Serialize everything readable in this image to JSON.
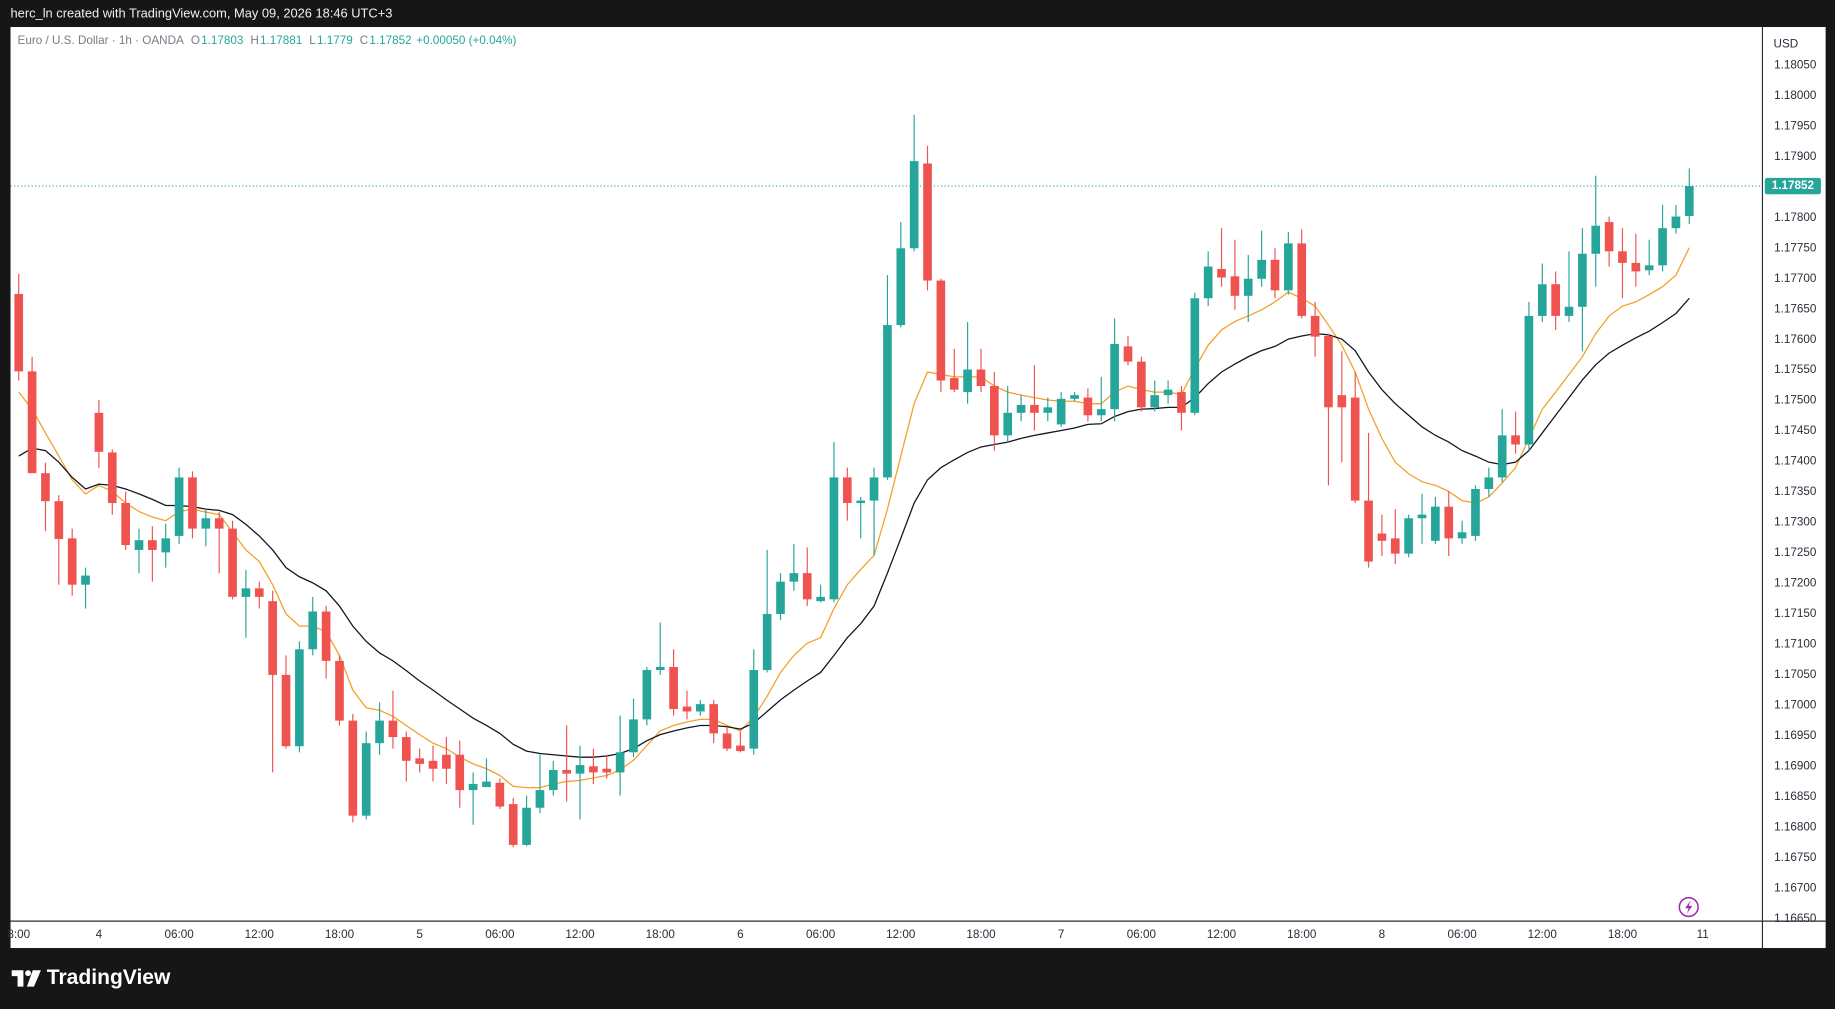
{
  "header": {
    "text": "herc_ln created with TradingView.com, May 09, 2026 18:46 UTC+3"
  },
  "footer": {
    "brand": "TradingView"
  },
  "chart_data": {
    "type": "candlestick",
    "legend": {
      "title": "Euro / U.S. Dollar · 1h · OANDA",
      "keys": [
        "O",
        "H",
        "L",
        "C"
      ],
      "change": "+0.00050 (+0.04%)"
    },
    "currency": "USD",
    "up_color": "#26a69a",
    "down_color": "#ef5350",
    "grid": false,
    "categories": [
      "8:00",
      null,
      null,
      null,
      null,
      null,
      "4",
      null,
      null,
      null,
      null,
      null,
      "06:00",
      null,
      null,
      null,
      null,
      null,
      "12:00",
      null,
      null,
      null,
      null,
      null,
      "18:00",
      null,
      null,
      null,
      null,
      null,
      "5",
      null,
      null,
      null,
      null,
      null,
      "06:00",
      null,
      null,
      null,
      null,
      null,
      "12:00",
      null,
      null,
      null,
      null,
      null,
      "18:00",
      null,
      null,
      null,
      null,
      null,
      "6",
      null,
      null,
      null,
      null,
      null,
      "06:00",
      null,
      null,
      null,
      null,
      null,
      "12:00",
      null,
      null,
      null,
      null,
      null,
      "18:00",
      null,
      null,
      null,
      null,
      null,
      "7",
      null,
      null,
      null,
      null,
      null,
      "06:00",
      null,
      null,
      null,
      null,
      null,
      "12:00",
      null,
      null,
      null,
      null,
      null,
      "18:00",
      null,
      null,
      null,
      null,
      null,
      "8",
      null,
      null,
      null,
      null,
      null,
      "06:00",
      null,
      null,
      null,
      null,
      null,
      "12:00",
      null,
      null,
      null,
      null,
      null,
      "18:00",
      null,
      null,
      null,
      null,
      null,
      "11"
    ],
    "open": [
      1.17675,
      1.17548,
      1.17381,
      1.17335,
      1.17274,
      1.17198,
      1.1748,
      1.17415,
      1.17332,
      1.17255,
      1.17271,
      1.17251,
      1.17278,
      1.17374,
      1.1729,
      1.17307,
      1.1729,
      1.17178,
      1.17192,
      1.17171,
      1.1705,
      1.16933,
      1.17092,
      1.17154,
      1.17073,
      1.16975,
      1.16819,
      1.16938,
      1.16975,
      1.16948,
      1.16913,
      1.16909,
      1.16919,
      1.16919,
      1.16861,
      1.16866,
      1.16873,
      1.16838,
      1.16771,
      1.16832,
      1.16861,
      1.16894,
      1.16888,
      1.169,
      1.16896,
      1.1689,
      1.16923,
      1.16977,
      1.17058,
      1.17063,
      1.16998,
      1.1699,
      1.17002,
      1.16954,
      1.16934,
      1.16929,
      1.17058,
      1.1715,
      1.17203,
      1.17217,
      1.17171,
      1.17174,
      1.17374,
      1.17332,
      1.17336,
      1.17374,
      1.17624,
      1.1775,
      1.17889,
      1.17697,
      1.17537,
      1.17514,
      1.17551,
      1.17524,
      1.17443,
      1.1748,
      1.17493,
      1.1748,
      1.17461,
      1.17503,
      1.17505,
      1.17476,
      1.17486,
      1.17589,
      1.17564,
      1.17489,
      1.17509,
      1.17514,
      1.1748,
      1.17668,
      1.17716,
      1.17704,
      1.17672,
      1.177,
      1.17731,
      1.17681,
      1.17758,
      1.17639,
      1.17606,
      1.17509,
      1.17505,
      1.17336,
      1.17282,
      1.17274,
      1.17249,
      1.17307,
      1.1727,
      1.17326,
      1.17274,
      1.17278,
      1.17355,
      1.17374,
      1.17443,
      1.17428,
      1.17639,
      1.17691,
      1.17639,
      1.17654,
      1.17741,
      1.17793,
      1.17745,
      1.17726,
      1.17714,
      1.17722,
      1.17783,
      1.17803,
      null
    ],
    "high": [
      1.17708,
      1.17572,
      1.17398,
      1.17345,
      1.1729,
      1.17226,
      1.17501,
      1.1742,
      1.17351,
      1.1729,
      1.17294,
      1.17298,
      1.1739,
      1.17384,
      1.17322,
      1.17317,
      1.17303,
      1.17222,
      1.17203,
      1.17188,
      1.17082,
      1.17105,
      1.17178,
      1.17163,
      1.17082,
      1.16986,
      1.16957,
      1.17005,
      1.17024,
      1.16957,
      1.16929,
      1.16934,
      1.16948,
      1.16942,
      1.1689,
      1.16913,
      1.1688,
      1.16848,
      1.16852,
      1.16919,
      1.16909,
      1.16967,
      1.16934,
      1.16929,
      1.16919,
      1.16983,
      1.17011,
      1.17063,
      1.17136,
      1.17092,
      1.17024,
      1.17009,
      1.17009,
      1.16963,
      1.16957,
      1.17092,
      1.17255,
      1.17217,
      1.17265,
      1.17259,
      1.17198,
      1.17432,
      1.1739,
      1.17342,
      1.1739,
      1.17706,
      1.17793,
      1.17969,
      1.17918,
      1.177,
      1.17585,
      1.17629,
      1.17585,
      1.17547,
      1.17524,
      1.1751,
      1.17558,
      1.17505,
      1.17514,
      1.17514,
      1.1752,
      1.17539,
      1.17635,
      1.17606,
      1.17572,
      1.17533,
      1.17533,
      1.17524,
      1.17677,
      1.17745,
      1.17783,
      1.17764,
      1.17739,
      1.17779,
      1.1775,
      1.17777,
      1.17781,
      1.17662,
      1.1761,
      1.17581,
      1.17547,
      1.17447,
      1.17313,
      1.17322,
      1.17313,
      1.17347,
      1.17342,
      1.17351,
      1.17303,
      1.17361,
      1.1739,
      1.17486,
      1.17482,
      1.17662,
      1.17725,
      1.17712,
      1.17745,
      1.17783,
      1.17869,
      1.17802,
      1.17783,
      1.17774,
      1.17764,
      1.17821,
      1.17821,
      1.17881,
      null
    ],
    "low": [
      1.17533,
      1.17381,
      1.17286,
      1.17198,
      1.1718,
      1.17159,
      1.17389,
      1.17313,
      1.17255,
      1.17217,
      1.17203,
      1.17226,
      1.17265,
      1.17274,
      1.17261,
      1.17217,
      1.17174,
      1.17111,
      1.17159,
      1.1689,
      1.16929,
      1.16923,
      1.17082,
      1.17044,
      1.16967,
      1.16808,
      1.16813,
      1.16919,
      1.16929,
      1.16875,
      1.1689,
      1.16875,
      1.16871,
      1.16832,
      1.16804,
      1.16866,
      1.1683,
      1.16767,
      1.16769,
      1.16823,
      1.16852,
      1.16842,
      1.16813,
      1.16871,
      1.1688,
      1.16852,
      1.16915,
      1.16967,
      1.1705,
      1.16983,
      1.16977,
      1.16983,
      1.16938,
      1.16925,
      1.16923,
      1.16919,
      1.17054,
      1.1714,
      1.17188,
      1.17163,
      1.17169,
      1.17169,
      1.17303,
      1.17274,
      1.17246,
      1.1737,
      1.1762,
      1.17745,
      1.17681,
      1.17514,
      1.17514,
      1.17495,
      1.17514,
      1.17418,
      1.17432,
      1.17466,
      1.17451,
      1.17466,
      1.17457,
      1.17499,
      1.17466,
      1.17466,
      1.17466,
      1.17558,
      1.17482,
      1.17482,
      1.17495,
      1.17451,
      1.17476,
      1.17655,
      1.17687,
      1.17649,
      1.17629,
      1.17687,
      1.17668,
      1.17674,
      1.17635,
      1.17572,
      1.17361,
      1.17399,
      1.17332,
      1.17226,
      1.17245,
      1.17232,
      1.17243,
      1.17265,
      1.17265,
      1.17245,
      1.17265,
      1.1727,
      1.17342,
      1.17366,
      1.17413,
      1.17418,
      1.17629,
      1.17616,
      1.17629,
      1.17581,
      1.17687,
      1.1772,
      1.17668,
      1.17687,
      1.17706,
      1.17712,
      1.17774,
      1.1779,
      null
    ],
    "close": [
      1.17548,
      1.17381,
      1.17335,
      1.17273,
      1.17198,
      1.17213,
      1.17416,
      1.17332,
      1.17263,
      1.17271,
      1.17255,
      1.17274,
      1.17374,
      1.1729,
      1.17307,
      1.1729,
      1.17178,
      1.17192,
      1.17178,
      1.1705,
      1.16933,
      1.17092,
      1.17154,
      1.17073,
      1.16975,
      1.16819,
      1.16938,
      1.16975,
      1.16948,
      1.16909,
      1.16904,
      1.16896,
      1.16896,
      1.16861,
      1.16871,
      1.16875,
      1.16834,
      1.16771,
      1.16832,
      1.16861,
      1.16894,
      1.16888,
      1.16902,
      1.1689,
      1.1689,
      1.16923,
      1.16977,
      1.17058,
      1.17063,
      1.16994,
      1.1699,
      1.17002,
      1.16954,
      1.16929,
      1.16925,
      1.17058,
      1.1715,
      1.17203,
      1.17217,
      1.17174,
      1.17178,
      1.17374,
      1.17332,
      1.17336,
      1.17374,
      1.17624,
      1.1775,
      1.17893,
      1.17697,
      1.17533,
      1.17518,
      1.17551,
      1.17524,
      1.17443,
      1.1748,
      1.17493,
      1.1748,
      1.17489,
      1.17503,
      1.17509,
      1.17476,
      1.17486,
      1.17593,
      1.17564,
      1.17489,
      1.17509,
      1.17518,
      1.1748,
      1.17668,
      1.1772,
      1.17702,
      1.17672,
      1.177,
      1.17731,
      1.17681,
      1.17758,
      1.17639,
      1.17605,
      1.17489,
      1.17489,
      1.17336,
      1.17236,
      1.1727,
      1.17249,
      1.17307,
      1.17313,
      1.17326,
      1.17274,
      1.17284,
      1.17355,
      1.17374,
      1.17443,
      1.17428,
      1.17639,
      1.17691,
      1.17639,
      1.17654,
      1.17741,
      1.17787,
      1.17745,
      1.17726,
      1.17712,
      1.17722,
      1.17783,
      1.17802,
      1.17852,
      null
    ],
    "series": [
      {
        "color": "#f5a02a",
        "values": [
          1.17514,
          1.17486,
          1.17447,
          1.17409,
          1.1737,
          1.17347,
          1.17361,
          1.17351,
          1.17332,
          1.17318,
          1.17309,
          1.17303,
          1.17318,
          1.17322,
          1.17317,
          1.17313,
          1.17284,
          1.17255,
          1.17236,
          1.17198,
          1.1715,
          1.1713,
          1.1713,
          1.17121,
          1.17082,
          1.17025,
          1.16996,
          1.16992,
          1.16982,
          1.16967,
          1.16952,
          1.16938,
          1.16929,
          1.16915,
          1.16904,
          1.16896,
          1.16885,
          1.16867,
          1.16865,
          1.16865,
          1.16871,
          1.16875,
          1.16877,
          1.16881,
          1.16885,
          1.16894,
          1.1691,
          1.16934,
          1.16958,
          1.16967,
          1.16973,
          1.16977,
          1.16977,
          1.16967,
          1.16958,
          1.16981,
          1.17015,
          1.17054,
          1.17082,
          1.17102,
          1.17111,
          1.17159,
          1.17198,
          1.17223,
          1.17246,
          1.17322,
          1.17409,
          1.17495,
          1.17547,
          1.17543,
          1.17539,
          1.17539,
          1.17539,
          1.17524,
          1.17514,
          1.17509,
          1.17505,
          1.17501,
          1.17499,
          1.17499,
          1.17495,
          1.17495,
          1.17514,
          1.17524,
          1.17518,
          1.17514,
          1.17514,
          1.1751,
          1.17553,
          1.17591,
          1.17616,
          1.1763,
          1.17639,
          1.17649,
          1.17662,
          1.17678,
          1.17668,
          1.17655,
          1.17624,
          1.17591,
          1.17547,
          1.17486,
          1.17438,
          1.17399,
          1.1738,
          1.17367,
          1.17361,
          1.17351,
          1.17336,
          1.17332,
          1.17342,
          1.17365,
          1.1739,
          1.17438,
          1.17486,
          1.17514,
          1.17543,
          1.17572,
          1.1761,
          1.17639,
          1.17655,
          1.17662,
          1.17674,
          1.17687,
          1.17706,
          1.17751,
          null
        ]
      },
      {
        "color": "#131722",
        "values": [
          1.17409,
          1.17422,
          1.17418,
          1.17399,
          1.17374,
          1.17355,
          1.17363,
          1.17361,
          1.17355,
          1.17347,
          1.17338,
          1.17328,
          1.17328,
          1.17326,
          1.17322,
          1.1732,
          1.17313,
          1.17297,
          1.17278,
          1.17255,
          1.17226,
          1.17211,
          1.17201,
          1.17188,
          1.17163,
          1.1713,
          1.17105,
          1.17086,
          1.17073,
          1.17057,
          1.1704,
          1.17025,
          1.17009,
          1.16994,
          1.16979,
          1.16967,
          1.16954,
          1.16936,
          1.16925,
          1.16921,
          1.16919,
          1.16917,
          1.16915,
          1.16915,
          1.16917,
          1.16921,
          1.16929,
          1.16942,
          1.16952,
          1.16958,
          1.16963,
          1.16967,
          1.16967,
          1.16965,
          1.16961,
          1.16971,
          1.1699,
          1.17009,
          1.17025,
          1.1704,
          1.17054,
          1.17082,
          1.17111,
          1.17134,
          1.17163,
          1.17217,
          1.17274,
          1.17332,
          1.1737,
          1.1739,
          1.17403,
          1.17415,
          1.17424,
          1.17428,
          1.17432,
          1.17438,
          1.17443,
          1.17447,
          1.17451,
          1.17455,
          1.17461,
          1.17462,
          1.17474,
          1.17482,
          1.17486,
          1.17487,
          1.17489,
          1.17489,
          1.17505,
          1.17528,
          1.17547,
          1.1756,
          1.17572,
          1.17582,
          1.17589,
          1.17601,
          1.17606,
          1.1761,
          1.17608,
          1.17601,
          1.17582,
          1.17547,
          1.17518,
          1.17495,
          1.17476,
          1.17457,
          1.17443,
          1.17432,
          1.17418,
          1.17409,
          1.17399,
          1.17395,
          1.17399,
          1.17418,
          1.17447,
          1.17476,
          1.17505,
          1.17534,
          1.17559,
          1.17578,
          1.17591,
          1.17603,
          1.17614,
          1.17628,
          1.17643,
          1.17668,
          null
        ]
      }
    ],
    "ylim": [
      1.16646,
      1.18113
    ],
    "yticks": [
      {
        "value": 1.1805,
        "label": "1.18050"
      },
      {
        "value": 1.18,
        "label": "1.18000"
      },
      {
        "value": 1.1795,
        "label": "1.17950"
      },
      {
        "value": 1.179,
        "label": "1.17900"
      },
      {
        "value": 1.178,
        "label": "1.17800"
      },
      {
        "value": 1.1775,
        "label": "1.17750"
      },
      {
        "value": 1.177,
        "label": "1.17700"
      },
      {
        "value": 1.1765,
        "label": "1.17650"
      },
      {
        "value": 1.176,
        "label": "1.17600"
      },
      {
        "value": 1.1755,
        "label": "1.17550"
      },
      {
        "value": 1.175,
        "label": "1.17500"
      },
      {
        "value": 1.1745,
        "label": "1.17450"
      },
      {
        "value": 1.174,
        "label": "1.17400"
      },
      {
        "value": 1.1735,
        "label": "1.17350"
      },
      {
        "value": 1.173,
        "label": "1.17300"
      },
      {
        "value": 1.1725,
        "label": "1.17250"
      },
      {
        "value": 1.172,
        "label": "1.17200"
      },
      {
        "value": 1.1715,
        "label": "1.17150"
      },
      {
        "value": 1.171,
        "label": "1.17100"
      },
      {
        "value": 1.1705,
        "label": "1.17050"
      },
      {
        "value": 1.17,
        "label": "1.17000"
      },
      {
        "value": 1.1695,
        "label": "1.16950"
      },
      {
        "value": 1.169,
        "label": "1.16900"
      },
      {
        "value": 1.1685,
        "label": "1.16850"
      },
      {
        "value": 1.168,
        "label": "1.16800"
      },
      {
        "value": 1.1675,
        "label": "1.16750"
      },
      {
        "value": 1.167,
        "label": "1.16700"
      },
      {
        "value": 1.1665,
        "label": "1.16650"
      }
    ]
  }
}
